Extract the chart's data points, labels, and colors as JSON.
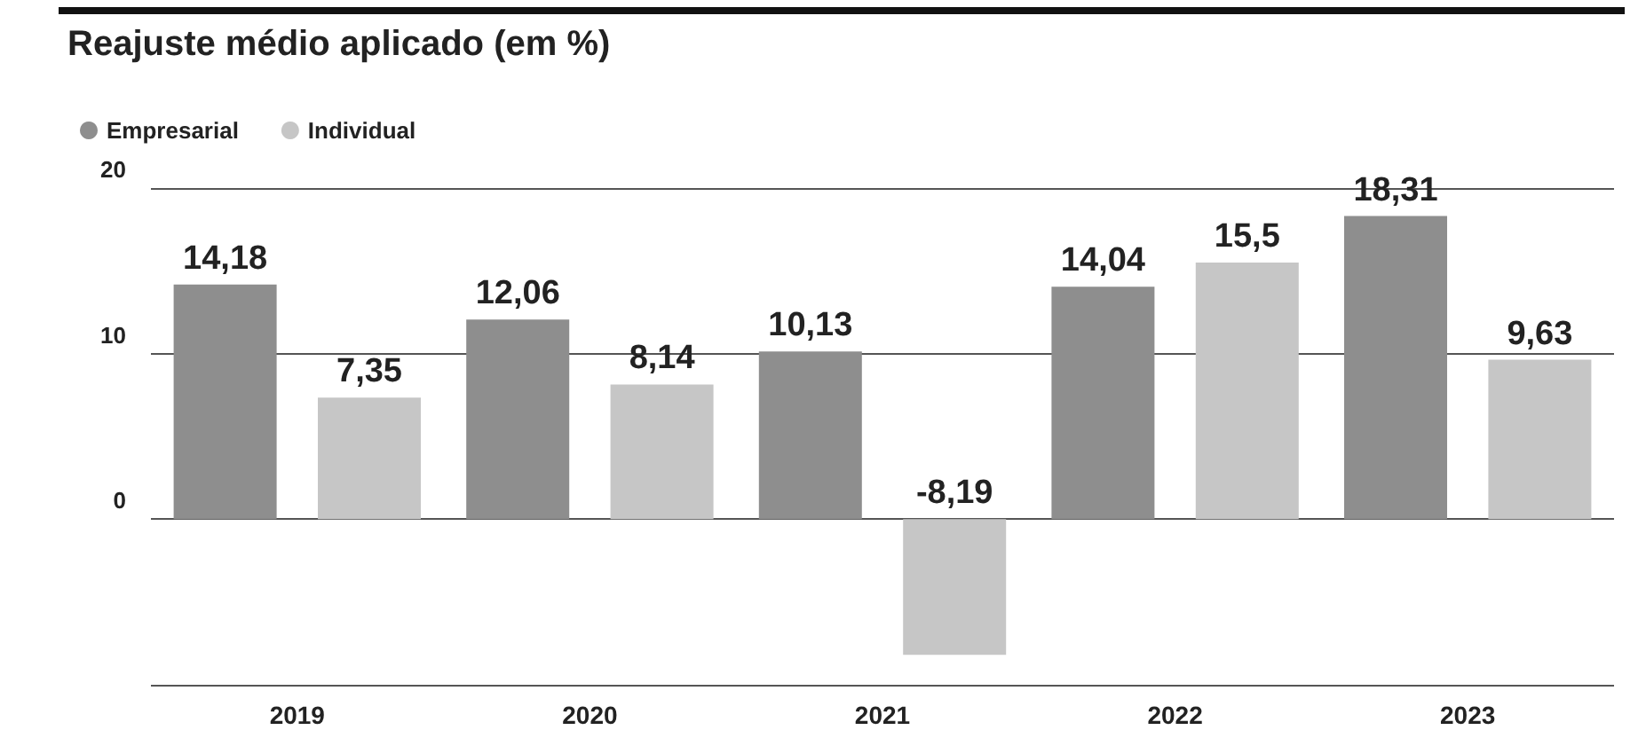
{
  "chart_data": {
    "type": "bar",
    "title": "Reajuste médio aplicado (em %)",
    "categories": [
      "2019",
      "2020",
      "2021",
      "2022",
      "2023"
    ],
    "series": [
      {
        "name": "Empresarial",
        "color": "#8e8e8e",
        "values": [
          14.18,
          12.06,
          10.13,
          14.04,
          18.31
        ],
        "value_labels": [
          "14,18",
          "12,06",
          "10,13",
          "14,04",
          "18,31"
        ]
      },
      {
        "name": "Individual",
        "color": "#c6c6c6",
        "values": [
          7.35,
          8.14,
          -8.19,
          15.5,
          9.63
        ],
        "value_labels": [
          "7,35",
          "8,14",
          "-8,19",
          "15,5",
          "9,63"
        ]
      }
    ],
    "ylim": [
      -10,
      20
    ],
    "yticks": [
      0,
      10,
      20
    ],
    "grid": "y",
    "legend": "top left"
  }
}
